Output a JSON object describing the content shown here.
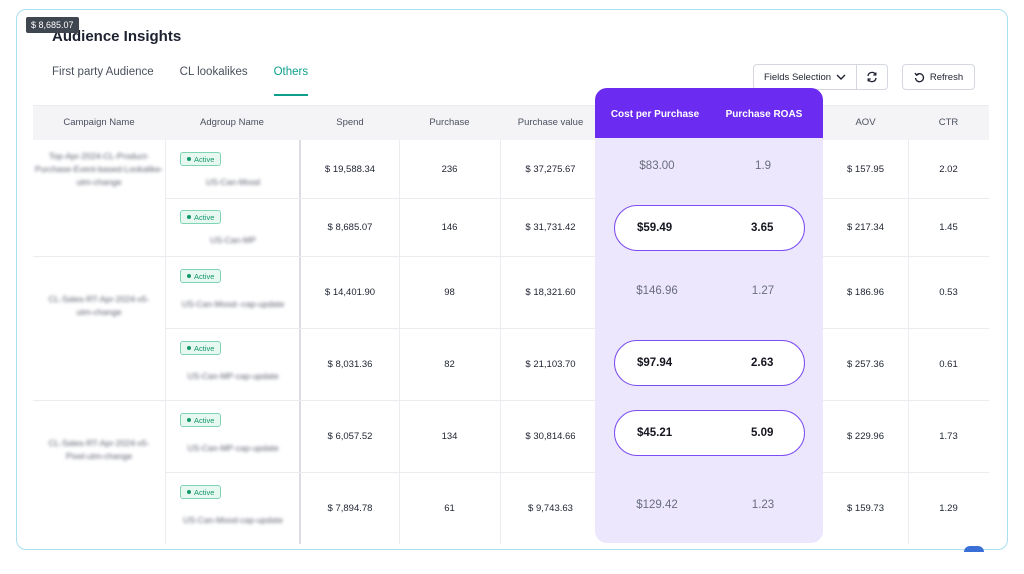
{
  "tooltip": "$ 8,685.07",
  "title": "Audience Insights",
  "tabs": [
    {
      "label": "First party Audience",
      "active": false
    },
    {
      "label": "CL lookalikes",
      "active": false
    },
    {
      "label": "Others",
      "active": true
    }
  ],
  "toolbar": {
    "fields_label": "Fields Selection",
    "refresh_label": "Refresh"
  },
  "columns": {
    "campaign": "Campaign Name",
    "adgroup": "Adgroup Name",
    "spend": "Spend",
    "purchase": "Purchase",
    "purchase_value": "Purchase value",
    "cpp": "Cost per Purchase",
    "roas": "Purchase ROAS",
    "aov": "AOV",
    "ctr": "CTR"
  },
  "campaigns": [
    {
      "name": "Top-Apr-2024-CL-Product-Purchase-Event-based-Lookalike-utm-change"
    },
    {
      "name": "CL-Sales-RT-Apr-2024-v5-utm-change"
    },
    {
      "name": "CL-Sales-RT-Apr-2024-v5-Pixel-utm-change"
    }
  ],
  "rows": [
    {
      "status": "Active",
      "adgroup": "US-Can-Mood",
      "spend": "$ 19,588.34",
      "purchase": "236",
      "purchase_value": "$ 37,275.67",
      "cpp": "$83.00",
      "roas": "1.9",
      "aov": "$ 157.95",
      "ctr": "2.02",
      "highlight": false
    },
    {
      "status": "Active",
      "adgroup": "US-Can-MP",
      "spend": "$ 8,685.07",
      "purchase": "146",
      "purchase_value": "$ 31,731.42",
      "cpp": "$59.49",
      "roas": "3.65",
      "aov": "$ 217.34",
      "ctr": "1.45",
      "highlight": true
    },
    {
      "status": "Active",
      "adgroup": "US-Can-Mood--cap-update",
      "spend": "$ 14,401.90",
      "purchase": "98",
      "purchase_value": "$ 18,321.60",
      "cpp": "$146.96",
      "roas": "1.27",
      "aov": "$ 186.96",
      "ctr": "0.53",
      "highlight": false
    },
    {
      "status": "Active",
      "adgroup": "US-Can-MP-cap-update",
      "spend": "$ 8,031.36",
      "purchase": "82",
      "purchase_value": "$ 21,103.70",
      "cpp": "$97.94",
      "roas": "2.63",
      "aov": "$ 257.36",
      "ctr": "0.61",
      "highlight": true
    },
    {
      "status": "Active",
      "adgroup": "US-Can-MP-cap-update",
      "spend": "$ 6,057.52",
      "purchase": "134",
      "purchase_value": "$ 30,814.66",
      "cpp": "$45.21",
      "roas": "5.09",
      "aov": "$ 229.96",
      "ctr": "1.73",
      "highlight": true
    },
    {
      "status": "Active",
      "adgroup": "US-Can-Mood-cap-update",
      "spend": "$ 7,894.78",
      "purchase": "61",
      "purchase_value": "$ 9,743.63",
      "cpp": "$129.42",
      "roas": "1.23",
      "aov": "$ 159.73",
      "ctr": "1.29",
      "highlight": false
    }
  ]
}
